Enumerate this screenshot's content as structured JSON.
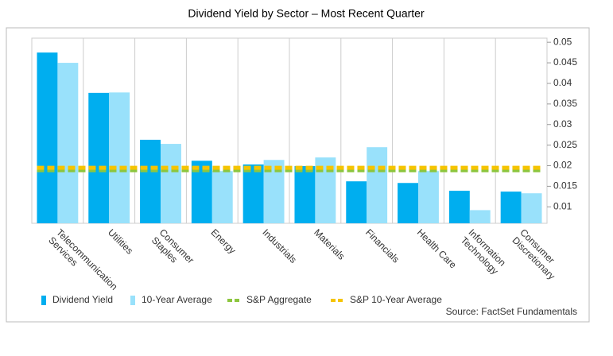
{
  "chart_data": {
    "type": "bar",
    "title": "Dividend Yield by Sector – Most Recent Quarter",
    "categories": [
      "Telecommunication\nServices",
      "Utilities",
      "Consumer\nStaples",
      "Energy",
      "Industrials",
      "Materials",
      "Financials",
      "Health Care",
      "Information\nTechnology",
      "Consumer\nDiscretionary"
    ],
    "series": [
      {
        "name": "Dividend Yield",
        "type": "bar",
        "color": "#00aeef",
        "values": [
          0.0475,
          0.0377,
          0.0263,
          0.0212,
          0.0203,
          0.0199,
          0.0162,
          0.0158,
          0.0139,
          0.0137
        ]
      },
      {
        "name": "10-Year Average",
        "type": "bar",
        "color": "#99e1fb",
        "values": [
          0.045,
          0.0378,
          0.0253,
          0.0187,
          0.0214,
          0.022,
          0.0245,
          0.0187,
          0.0092,
          0.0133
        ]
      },
      {
        "name": "S&P Aggregate",
        "type": "line",
        "color": "#8dc63f",
        "values": [
          0.0189,
          0.0189,
          0.0189,
          0.0189,
          0.0189,
          0.0189,
          0.0189,
          0.0189,
          0.0189,
          0.0189
        ]
      },
      {
        "name": "S&P 10-Year Average",
        "type": "line",
        "color": "#f5c400",
        "values": [
          0.0195,
          0.0195,
          0.0195,
          0.0195,
          0.0195,
          0.0195,
          0.0195,
          0.0195,
          0.0195,
          0.0195
        ]
      }
    ],
    "ylim": [
      0.006,
      0.051
    ],
    "yticks": [
      0.01,
      0.015,
      0.02,
      0.025,
      0.03,
      0.035,
      0.04,
      0.045,
      0.05
    ],
    "source": "Source: FactSet Fundamentals"
  }
}
